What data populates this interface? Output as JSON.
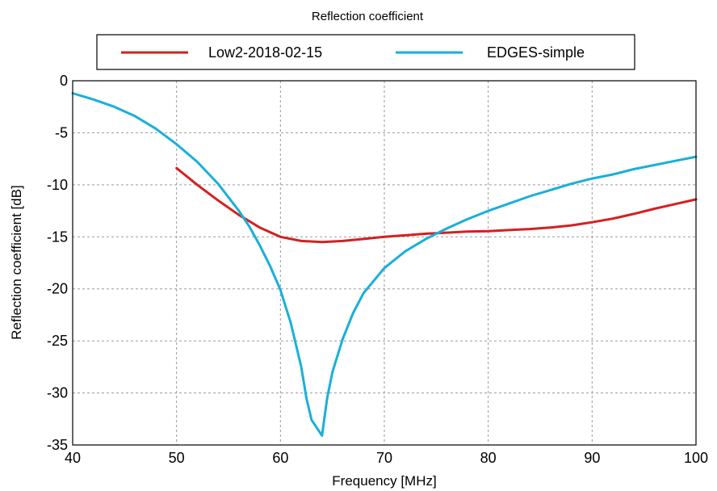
{
  "chart_data": {
    "type": "line",
    "title": "Reflection coefficient",
    "xlabel": "Frequency [MHz]",
    "ylabel": "Reflection coefficient [dB]",
    "xlim": [
      40,
      100
    ],
    "ylim": [
      -35,
      0
    ],
    "xticks": [
      40,
      50,
      60,
      70,
      80,
      90,
      100
    ],
    "yticks": [
      0,
      -5,
      -10,
      -15,
      -20,
      -25,
      -30,
      -35
    ],
    "grid": true,
    "legend_placement": "top",
    "series": [
      {
        "name": "Low2-2018-02-15",
        "color": "#d42020",
        "x": [
          50,
          52,
          54,
          56,
          58,
          60,
          62,
          64,
          66,
          68,
          70,
          72,
          74,
          76,
          78,
          80,
          82,
          84,
          86,
          88,
          90,
          92,
          94,
          96,
          98,
          100
        ],
        "y": [
          -8.4,
          -10.0,
          -11.5,
          -12.9,
          -14.1,
          -15.0,
          -15.4,
          -15.5,
          -15.4,
          -15.2,
          -15.0,
          -14.85,
          -14.7,
          -14.6,
          -14.5,
          -14.45,
          -14.35,
          -14.25,
          -14.1,
          -13.9,
          -13.6,
          -13.25,
          -12.8,
          -12.3,
          -11.85,
          -11.4
        ]
      },
      {
        "name": "EDGES-simple",
        "color": "#1aafd9",
        "x": [
          40,
          42,
          44,
          46,
          48,
          50,
          52,
          54,
          56,
          57,
          58,
          59,
          60,
          61,
          62,
          62.5,
          63,
          64,
          64.5,
          65,
          66,
          67,
          68,
          70,
          72,
          74,
          76,
          78,
          80,
          82,
          84,
          86,
          88,
          90,
          92,
          94,
          96,
          98,
          100
        ],
        "y": [
          -1.2,
          -1.8,
          -2.5,
          -3.4,
          -4.6,
          -6.1,
          -7.8,
          -9.9,
          -12.5,
          -14.0,
          -15.8,
          -17.8,
          -20.1,
          -23.3,
          -27.5,
          -30.5,
          -32.6,
          -34.1,
          -30.5,
          -28.0,
          -24.8,
          -22.3,
          -20.4,
          -18.0,
          -16.4,
          -15.2,
          -14.2,
          -13.3,
          -12.5,
          -11.8,
          -11.1,
          -10.5,
          -9.9,
          -9.4,
          -9.0,
          -8.5,
          -8.1,
          -7.7,
          -7.3
        ]
      }
    ]
  }
}
